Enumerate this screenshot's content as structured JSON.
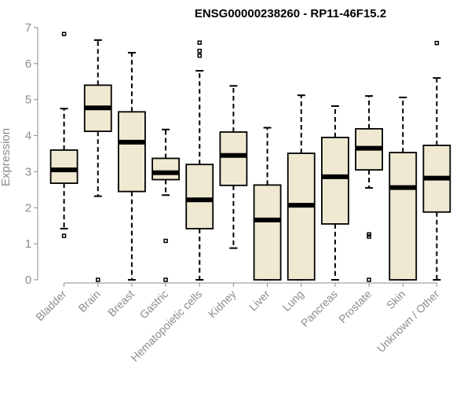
{
  "chart_data": {
    "type": "boxplot",
    "title": "ENSG00000238260 - RP11-46F15.2",
    "xlabel": "",
    "ylabel": "Expression",
    "ylim": [
      0,
      7
    ],
    "yticks": [
      0,
      1,
      2,
      3,
      4,
      5,
      6,
      7
    ],
    "box_color": "#efe9d2",
    "categories": [
      "Bladder",
      "Brain",
      "Breast",
      "Gastric",
      "Hematopoietic cells",
      "Kidney",
      "Liver",
      "Lung",
      "Pancreas",
      "Prostate",
      "Skin",
      "Unknown / Other"
    ],
    "boxes": [
      {
        "name": "Bladder",
        "whisker_low": 1.42,
        "q1": 2.68,
        "median": 3.05,
        "q3": 3.6,
        "whisker_high": 4.75,
        "outliers": [
          1.22,
          6.82
        ]
      },
      {
        "name": "Brain",
        "whisker_low": 2.32,
        "q1": 4.12,
        "median": 4.77,
        "q3": 5.4,
        "whisker_high": 6.65,
        "outliers": [
          0.0
        ]
      },
      {
        "name": "Breast",
        "whisker_low": 0.0,
        "q1": 2.45,
        "median": 3.82,
        "q3": 4.66,
        "whisker_high": 6.3,
        "outliers": []
      },
      {
        "name": "Gastric",
        "whisker_low": 2.35,
        "q1": 2.78,
        "median": 2.97,
        "q3": 3.37,
        "whisker_high": 4.17,
        "outliers": [
          1.08,
          0.0
        ]
      },
      {
        "name": "Hematopoietic cells",
        "whisker_low": 0.0,
        "q1": 1.42,
        "median": 2.22,
        "q3": 3.2,
        "whisker_high": 5.8,
        "outliers": [
          6.22,
          6.35,
          6.58
        ]
      },
      {
        "name": "Kidney",
        "whisker_low": 0.88,
        "q1": 2.62,
        "median": 3.45,
        "q3": 4.1,
        "whisker_high": 5.38,
        "outliers": []
      },
      {
        "name": "Liver",
        "whisker_low": 0.0,
        "q1": 0.0,
        "median": 1.66,
        "q3": 2.63,
        "whisker_high": 4.22,
        "outliers": []
      },
      {
        "name": "Lung",
        "whisker_low": 0.0,
        "q1": 0.0,
        "median": 2.07,
        "q3": 3.51,
        "whisker_high": 5.12,
        "outliers": []
      },
      {
        "name": "Pancreas",
        "whisker_low": 0.0,
        "q1": 1.55,
        "median": 2.86,
        "q3": 3.95,
        "whisker_high": 4.82,
        "outliers": []
      },
      {
        "name": "Prostate",
        "whisker_low": 2.55,
        "q1": 3.05,
        "median": 3.65,
        "q3": 4.19,
        "whisker_high": 5.1,
        "outliers": [
          1.2,
          1.26,
          0.0
        ]
      },
      {
        "name": "Skin",
        "whisker_low": 0.0,
        "q1": 0.0,
        "median": 2.56,
        "q3": 3.53,
        "whisker_high": 5.06,
        "outliers": []
      },
      {
        "name": "Unknown / Other",
        "whisker_low": 0.0,
        "q1": 1.88,
        "median": 2.82,
        "q3": 3.73,
        "whisker_high": 5.6,
        "outliers": [
          6.57
        ]
      }
    ]
  }
}
